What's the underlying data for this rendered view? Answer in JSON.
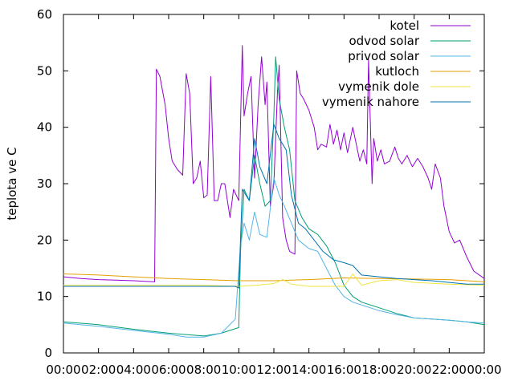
{
  "chart_data": {
    "type": "line",
    "title": "",
    "xlabel": "",
    "ylabel": "teplota ve C",
    "xlim": [
      0,
      24
    ],
    "ylim": [
      0,
      60
    ],
    "x_ticks": [
      "00:00",
      "02:00",
      "04:00",
      "06:00",
      "08:00",
      "10:00",
      "12:00",
      "14:00",
      "16:00",
      "18:00",
      "20:00",
      "22:00",
      "00:00"
    ],
    "y_ticks": [
      0,
      10,
      20,
      30,
      40,
      50,
      60
    ],
    "grid": false,
    "legend": "top-right",
    "series": [
      {
        "name": "kotel",
        "color": "#9400d3",
        "points": [
          [
            0,
            13.5
          ],
          [
            1,
            13.2
          ],
          [
            2,
            13
          ],
          [
            3,
            12.9
          ],
          [
            4,
            12.8
          ],
          [
            5.2,
            12.6
          ],
          [
            5.3,
            50.3
          ],
          [
            5.5,
            49
          ],
          [
            5.8,
            44
          ],
          [
            6.0,
            38
          ],
          [
            6.2,
            34
          ],
          [
            6.5,
            32.5
          ],
          [
            6.8,
            31.5
          ],
          [
            7.0,
            49.5
          ],
          [
            7.2,
            46
          ],
          [
            7.4,
            30
          ],
          [
            7.6,
            31
          ],
          [
            7.8,
            34
          ],
          [
            8.0,
            27.5
          ],
          [
            8.2,
            28
          ],
          [
            8.4,
            49
          ],
          [
            8.6,
            27
          ],
          [
            8.8,
            27
          ],
          [
            9.0,
            30
          ],
          [
            9.2,
            30
          ],
          [
            9.5,
            24
          ],
          [
            9.7,
            29
          ],
          [
            10.0,
            27
          ],
          [
            10.2,
            54.5
          ],
          [
            10.3,
            42
          ],
          [
            10.5,
            46
          ],
          [
            10.7,
            49
          ],
          [
            10.9,
            31
          ],
          [
            11.1,
            44
          ],
          [
            11.3,
            52.5
          ],
          [
            11.5,
            44
          ],
          [
            11.6,
            48
          ],
          [
            11.8,
            26
          ],
          [
            12.0,
            30
          ],
          [
            12.2,
            46
          ],
          [
            12.3,
            51
          ],
          [
            12.5,
            24
          ],
          [
            12.7,
            20
          ],
          [
            12.9,
            18
          ],
          [
            13.2,
            17.5
          ],
          [
            13.3,
            50
          ],
          [
            13.5,
            46
          ],
          [
            13.7,
            45
          ],
          [
            14.0,
            43
          ],
          [
            14.3,
            40
          ],
          [
            14.5,
            36
          ],
          [
            14.7,
            37
          ],
          [
            15.0,
            36.5
          ],
          [
            15.2,
            40.5
          ],
          [
            15.4,
            37
          ],
          [
            15.6,
            39.5
          ],
          [
            15.8,
            36
          ],
          [
            16.0,
            39
          ],
          [
            16.2,
            35.5
          ],
          [
            16.5,
            40
          ],
          [
            16.7,
            37
          ],
          [
            16.9,
            34
          ],
          [
            17.1,
            36
          ],
          [
            17.3,
            33.5
          ],
          [
            17.4,
            52
          ],
          [
            17.6,
            30
          ],
          [
            17.7,
            38
          ],
          [
            17.9,
            34
          ],
          [
            18.1,
            36
          ],
          [
            18.3,
            33.5
          ],
          [
            18.6,
            34
          ],
          [
            18.9,
            36.5
          ],
          [
            19.1,
            34.5
          ],
          [
            19.3,
            33.5
          ],
          [
            19.6,
            35
          ],
          [
            19.9,
            33
          ],
          [
            20.2,
            34.5
          ],
          [
            20.5,
            33
          ],
          [
            20.8,
            31
          ],
          [
            21.0,
            29
          ],
          [
            21.2,
            33.5
          ],
          [
            21.5,
            31
          ],
          [
            21.7,
            26
          ],
          [
            22.0,
            21.5
          ],
          [
            22.3,
            19.5
          ],
          [
            22.6,
            20
          ],
          [
            23.0,
            17
          ],
          [
            23.4,
            14.5
          ],
          [
            24.0,
            13.2
          ]
        ]
      },
      {
        "name": "odvod solar",
        "color": "#009e73",
        "points": [
          [
            0,
            5.5
          ],
          [
            2,
            5
          ],
          [
            4,
            4.2
          ],
          [
            6,
            3.5
          ],
          [
            8,
            3
          ],
          [
            9,
            3.5
          ],
          [
            10,
            4.5
          ],
          [
            10.1,
            18
          ],
          [
            10.3,
            29
          ],
          [
            10.6,
            27
          ],
          [
            10.9,
            35
          ],
          [
            11.2,
            30
          ],
          [
            11.5,
            26
          ],
          [
            11.8,
            27
          ],
          [
            12.0,
            42
          ],
          [
            12.1,
            52.5
          ],
          [
            12.3,
            45
          ],
          [
            12.6,
            40
          ],
          [
            12.9,
            36
          ],
          [
            13.2,
            27
          ],
          [
            13.6,
            24
          ],
          [
            14.0,
            22
          ],
          [
            14.5,
            21
          ],
          [
            15.0,
            19
          ],
          [
            15.5,
            16
          ],
          [
            16.0,
            12
          ],
          [
            16.5,
            10
          ],
          [
            17.0,
            9
          ],
          [
            18.0,
            8
          ],
          [
            19.0,
            7
          ],
          [
            20.0,
            6.2
          ],
          [
            21.0,
            6
          ],
          [
            22.0,
            5.8
          ],
          [
            23.0,
            5.5
          ],
          [
            24.0,
            5
          ]
        ]
      },
      {
        "name": "privod solar",
        "color": "#56b4e9",
        "points": [
          [
            0,
            5.3
          ],
          [
            2,
            4.7
          ],
          [
            4,
            4
          ],
          [
            6,
            3.3
          ],
          [
            7,
            2.8
          ],
          [
            8,
            2.8
          ],
          [
            9,
            3.5
          ],
          [
            9.8,
            6
          ],
          [
            10.1,
            19
          ],
          [
            10.3,
            23
          ],
          [
            10.6,
            20
          ],
          [
            10.9,
            25
          ],
          [
            11.2,
            21
          ],
          [
            11.6,
            20.5
          ],
          [
            12.0,
            31
          ],
          [
            12.3,
            28
          ],
          [
            12.6,
            26
          ],
          [
            13.0,
            23
          ],
          [
            13.4,
            20
          ],
          [
            14.0,
            18.5
          ],
          [
            14.5,
            18
          ],
          [
            15.0,
            15
          ],
          [
            15.5,
            12
          ],
          [
            16.0,
            10
          ],
          [
            16.5,
            9
          ],
          [
            17.0,
            8.5
          ],
          [
            18.0,
            7.5
          ],
          [
            19.0,
            6.8
          ],
          [
            20.0,
            6.2
          ],
          [
            21.0,
            6
          ],
          [
            22.0,
            5.8
          ],
          [
            23.0,
            5.5
          ],
          [
            24.0,
            5.3
          ]
        ]
      },
      {
        "name": "kutloch",
        "color": "#e69f00",
        "points": [
          [
            0,
            14
          ],
          [
            2,
            13.8
          ],
          [
            4,
            13.5
          ],
          [
            6,
            13.2
          ],
          [
            8,
            13
          ],
          [
            10,
            12.8
          ],
          [
            12,
            12.8
          ],
          [
            14,
            13
          ],
          [
            16,
            13.3
          ],
          [
            18,
            13.2
          ],
          [
            20,
            13.1
          ],
          [
            22,
            13
          ],
          [
            24,
            12.6
          ]
        ]
      },
      {
        "name": "vymenik dole",
        "color": "#f0e442",
        "points": [
          [
            0,
            12
          ],
          [
            2,
            12
          ],
          [
            4,
            12
          ],
          [
            6,
            12
          ],
          [
            8,
            12
          ],
          [
            10,
            11.8
          ],
          [
            11,
            12
          ],
          [
            12,
            12.3
          ],
          [
            12.5,
            13
          ],
          [
            13,
            12.2
          ],
          [
            14,
            11.8
          ],
          [
            16,
            11.8
          ],
          [
            16.5,
            14
          ],
          [
            17.0,
            12
          ],
          [
            18,
            12.8
          ],
          [
            19,
            13
          ],
          [
            20,
            12.5
          ],
          [
            22,
            12.2
          ],
          [
            24,
            12
          ]
        ]
      },
      {
        "name": "vymenik nahore",
        "color": "#0072b2",
        "points": [
          [
            0,
            11.8
          ],
          [
            2,
            11.8
          ],
          [
            4,
            11.8
          ],
          [
            6,
            11.8
          ],
          [
            8,
            11.8
          ],
          [
            9.8,
            11.8
          ],
          [
            10.0,
            11.5
          ],
          [
            10.2,
            29
          ],
          [
            10.6,
            27
          ],
          [
            10.9,
            38
          ],
          [
            11.2,
            33
          ],
          [
            11.6,
            30
          ],
          [
            12.0,
            40.5
          ],
          [
            12.3,
            38
          ],
          [
            12.7,
            36
          ],
          [
            13.0,
            28
          ],
          [
            13.4,
            23
          ],
          [
            13.8,
            22
          ],
          [
            14.3,
            20
          ],
          [
            14.8,
            18
          ],
          [
            15.4,
            16.5
          ],
          [
            16.0,
            16
          ],
          [
            16.5,
            15.5
          ],
          [
            17.0,
            13.8
          ],
          [
            18.0,
            13.5
          ],
          [
            19.0,
            13.2
          ],
          [
            20.0,
            13
          ],
          [
            21.0,
            12.8
          ],
          [
            22.0,
            12.5
          ],
          [
            23.0,
            12.2
          ],
          [
            24.0,
            12.2
          ]
        ]
      }
    ]
  }
}
